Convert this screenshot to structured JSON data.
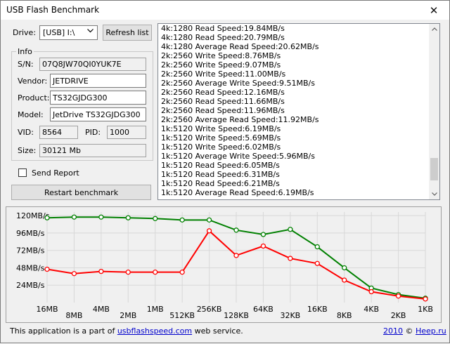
{
  "window": {
    "title": "USB Flash Benchmark",
    "close_glyph": "✕"
  },
  "drive": {
    "label": "Drive:",
    "value": "[USB] I:\\",
    "refresh_label": "Refresh list"
  },
  "info": {
    "group_label": "Info",
    "sn_label": "S/N:",
    "sn": "07Q8JW70QI0YUK7E",
    "vendor_label": "Vendor:",
    "vendor": "JETDRIVE",
    "product_label": "Product:",
    "product": "TS32GJDG300",
    "model_label": "Model:",
    "model": "JetDrive TS32GJDG300",
    "vid_label": "VID:",
    "vid": "8564",
    "pid_label": "PID:",
    "pid": "1000",
    "size_label": "Size:",
    "size": "30121 Mb"
  },
  "send_report": {
    "label": "Send Report",
    "checked": false
  },
  "restart_label": "Restart benchmark",
  "log_lines": [
    "4k:1280 Read Speed:19.84MB/s",
    "4k:1280 Read Speed:20.79MB/s",
    "4k:1280 Average Read Speed:20.62MB/s",
    "2k:2560 Write Speed:8.76MB/s",
    "2k:2560 Write Speed:9.07MB/s",
    "2k:2560 Write Speed:11.00MB/s",
    "2k:2560 Average Write Speed:9.51MB/s",
    "2k:2560 Read Speed:12.16MB/s",
    "2k:2560 Read Speed:11.66MB/s",
    "2k:2560 Read Speed:11.96MB/s",
    "2k:2560 Average Read Speed:11.92MB/s",
    "1k:5120 Write Speed:6.19MB/s",
    "1k:5120 Write Speed:5.69MB/s",
    "1k:5120 Write Speed:6.02MB/s",
    "1k:5120 Average Write Speed:5.96MB/s",
    "1k:5120 Read Speed:6.05MB/s",
    "1k:5120 Read Speed:6.31MB/s",
    "1k:5120 Read Speed:6.21MB/s",
    "1k:5120 Average Read Speed:6.19MB/s"
  ],
  "chart_data": {
    "type": "line",
    "categories": [
      "16MB",
      "8MB",
      "4MB",
      "2MB",
      "1MB",
      "512KB",
      "256KB",
      "128KB",
      "64KB",
      "32KB",
      "16KB",
      "8KB",
      "4KB",
      "2KB",
      "1KB"
    ],
    "yticks": [
      "120MB/s",
      "96MB/s",
      "72MB/s",
      "48MB/s",
      "24MB/s"
    ],
    "ytick_values": [
      120,
      96,
      72,
      48,
      24
    ],
    "ylim": [
      0,
      125
    ],
    "grid": true,
    "series": [
      {
        "color": "#008000",
        "values": [
          117,
          118,
          118,
          117,
          116,
          114,
          114,
          100,
          94,
          101,
          77,
          48,
          20,
          11,
          6
        ]
      },
      {
        "color": "#ff0000",
        "values": [
          46,
          40,
          43,
          42,
          42,
          42,
          99,
          65,
          78,
          61,
          54,
          31,
          15,
          9,
          5
        ]
      }
    ]
  },
  "footer": {
    "text_before": "This application is a part of ",
    "link": "usbflashspeed.com",
    "text_after": " web service.",
    "right_year": "2010",
    "right_sep": " © ",
    "right_link": "Heep.ru"
  }
}
